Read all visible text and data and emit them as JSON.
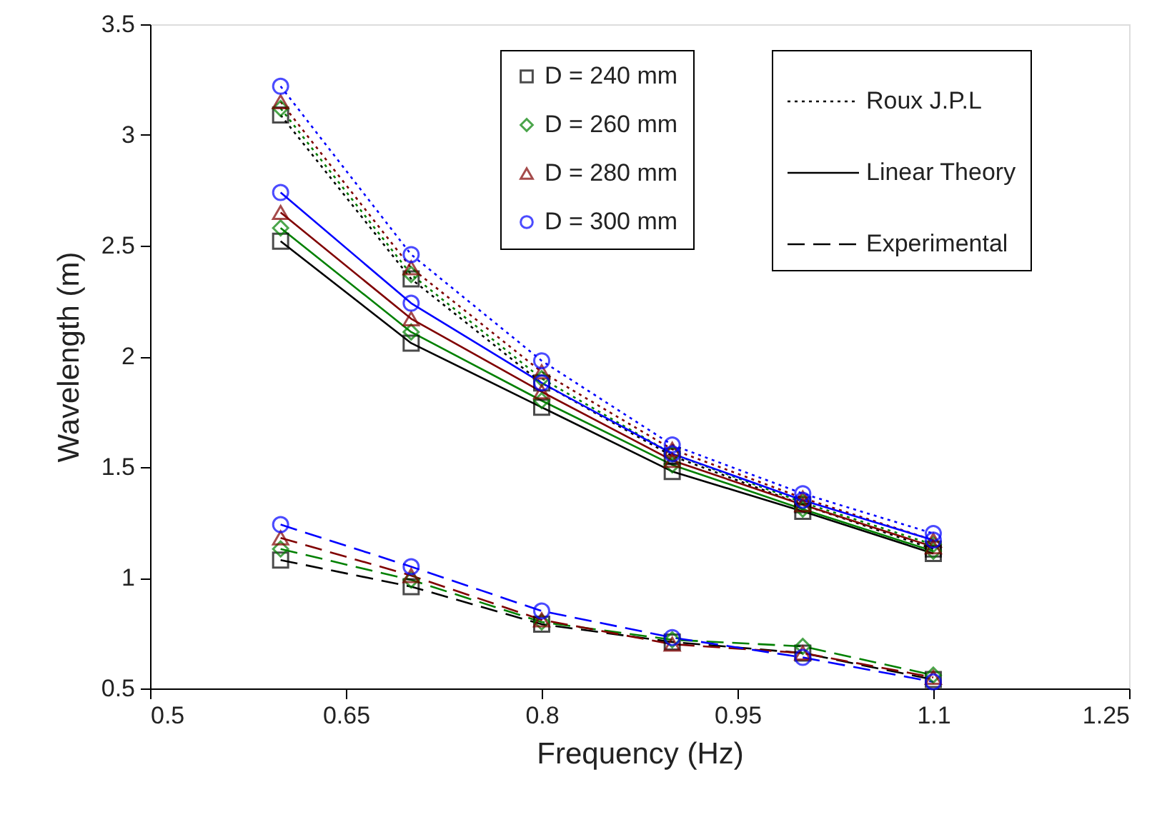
{
  "chart_data": {
    "type": "line",
    "xlabel": "Frequency (Hz)",
    "ylabel": "Wavelength (m)",
    "x": [
      0.6,
      0.7,
      0.8,
      0.9,
      1.0,
      1.1
    ],
    "xlim": [
      0.5,
      1.25
    ],
    "xticks": [
      0.5,
      0.65,
      0.8,
      0.95,
      1.1,
      1.25
    ],
    "ylim": [
      0.5,
      3.5
    ],
    "yticks": [
      0.5,
      1,
      1.5,
      2,
      2.5,
      3,
      3.5
    ],
    "grid": false,
    "legend": "top right",
    "annotations": [
      "Roux J.P.L",
      "Linear Theory",
      "Experimental"
    ],
    "series": [
      {
        "name": "D = 240 mm",
        "color": "#000000",
        "marker": "square",
        "line_style": "dotted",
        "values": [
          3.09,
          2.35,
          1.88,
          1.55,
          1.33,
          1.13
        ]
      },
      {
        "name": "D = 260 mm",
        "color": "#008000",
        "marker": "diamond",
        "line_style": "dotted",
        "values": [
          3.12,
          2.37,
          1.9,
          1.56,
          1.34,
          1.15
        ]
      },
      {
        "name": "D = 280 mm",
        "color": "#800000",
        "marker": "triangle",
        "line_style": "dotted",
        "values": [
          3.15,
          2.4,
          1.93,
          1.58,
          1.36,
          1.17
        ]
      },
      {
        "name": "D = 300 mm",
        "color": "#0000ff",
        "marker": "circle",
        "line_style": "dotted",
        "values": [
          3.22,
          2.46,
          1.98,
          1.6,
          1.38,
          1.2
        ]
      },
      {
        "color": "#000000",
        "marker": "square",
        "line_style": "solid",
        "values": [
          2.52,
          2.06,
          1.77,
          1.48,
          1.3,
          1.11
        ]
      },
      {
        "color": "#008000",
        "marker": "diamond",
        "line_style": "solid",
        "values": [
          2.58,
          2.11,
          1.8,
          1.51,
          1.31,
          1.12
        ]
      },
      {
        "color": "#800000",
        "marker": "triangle",
        "line_style": "solid",
        "values": [
          2.65,
          2.17,
          1.84,
          1.53,
          1.33,
          1.14
        ]
      },
      {
        "color": "#0000ff",
        "marker": "circle",
        "line_style": "solid",
        "values": [
          2.74,
          2.24,
          1.88,
          1.56,
          1.35,
          1.17
        ]
      },
      {
        "color": "#000000",
        "marker": "square",
        "line_style": "dashed",
        "values": [
          1.08,
          0.96,
          0.79,
          0.71,
          0.66,
          0.54
        ]
      },
      {
        "color": "#008000",
        "marker": "diamond",
        "line_style": "dashed",
        "values": [
          1.13,
          0.99,
          0.8,
          0.72,
          0.69,
          0.56
        ]
      },
      {
        "color": "#800000",
        "marker": "triangle",
        "line_style": "dashed",
        "values": [
          1.18,
          1.01,
          0.81,
          0.7,
          0.66,
          0.55
        ]
      },
      {
        "color": "#0000ff",
        "marker": "circle",
        "line_style": "dashed",
        "values": [
          1.24,
          1.05,
          0.85,
          0.73,
          0.64,
          0.53
        ]
      }
    ]
  }
}
